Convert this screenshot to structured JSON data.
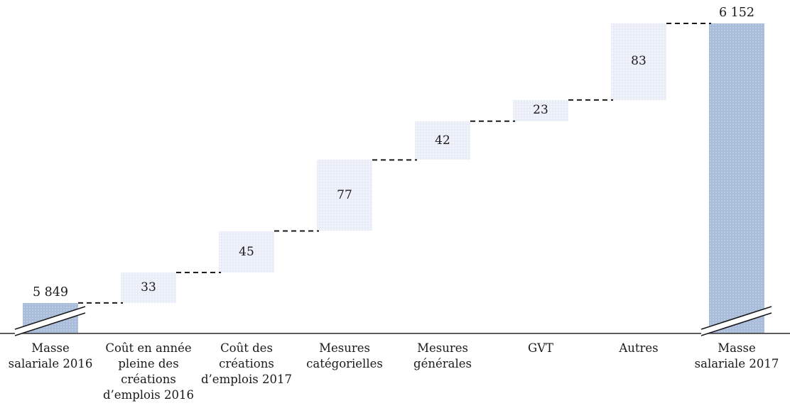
{
  "chart_data": {
    "type": "bar",
    "subtype": "waterfall",
    "title": "",
    "xlabel": "",
    "ylabel": "",
    "legend": null,
    "grid": false,
    "axis_broken": true,
    "y_value_range_shown": [
      5849,
      6152
    ],
    "steps": [
      {
        "label": "Masse salariale 2016",
        "label_lines": [
          "Masse",
          "salariale 2016"
        ],
        "kind": "total",
        "value": 5849,
        "display": "5 849",
        "value_label_position": "above",
        "axis_break": true
      },
      {
        "label": "Coût en année pleine des créations d’emplois 2016",
        "label_lines": [
          "Coût en année",
          "pleine des",
          "créations",
          "d’emplois 2016"
        ],
        "kind": "increase",
        "value": 33,
        "display": "33",
        "value_label_position": "inside",
        "axis_break": false
      },
      {
        "label": "Coût des créations d’emplois 2017",
        "label_lines": [
          "Coût des",
          "créations",
          "d’emplois 2017"
        ],
        "kind": "increase",
        "value": 45,
        "display": "45",
        "value_label_position": "inside",
        "axis_break": false
      },
      {
        "label": "Mesures catégorielles",
        "label_lines": [
          "Mesures",
          "catégorielles"
        ],
        "kind": "increase",
        "value": 77,
        "display": "77",
        "value_label_position": "inside",
        "axis_break": false
      },
      {
        "label": "Mesures générales",
        "label_lines": [
          "Mesures",
          "générales"
        ],
        "kind": "increase",
        "value": 42,
        "display": "42",
        "value_label_position": "inside",
        "axis_break": false
      },
      {
        "label": "GVT",
        "label_lines": [
          "GVT"
        ],
        "kind": "increase",
        "value": 23,
        "display": "23",
        "value_label_position": "inside",
        "axis_break": false
      },
      {
        "label": "Autres",
        "label_lines": [
          "Autres"
        ],
        "kind": "increase",
        "value": 83,
        "display": "83",
        "value_label_position": "inside",
        "axis_break": false
      },
      {
        "label": "Masse salariale 2017",
        "label_lines": [
          "Masse",
          "salariale 2017"
        ],
        "kind": "total",
        "value": 6152,
        "display": "6 152",
        "value_label_position": "above",
        "axis_break": true
      }
    ],
    "colors": {
      "total_bar": "#a9bcda",
      "delta_bar": "#e9edf8",
      "connector": "#1a1a1a",
      "axis": "#3a3a3a",
      "text": "#1a1a1a",
      "background": "#ffffff"
    },
    "connector_style": "dashed",
    "baseline_axis_visible": true
  }
}
